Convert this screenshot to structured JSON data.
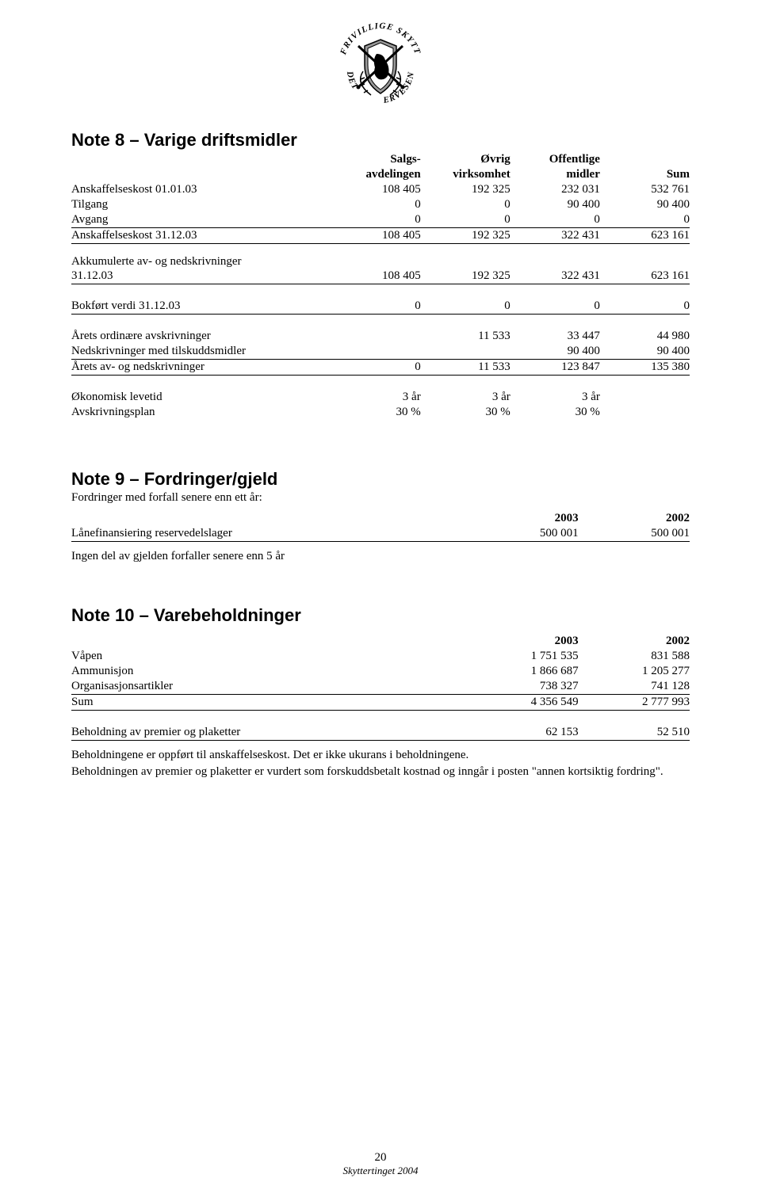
{
  "logo": {
    "arc_text": "DET FRIVILLIGE SKYTTERVESEN"
  },
  "note8": {
    "title": "Note 8 – Varige driftsmidler",
    "headers": {
      "c1": "Salgs-",
      "c1b": "avdelingen",
      "c2": "Øvrig",
      "c2b": "virksomhet",
      "c3": "Offentlige",
      "c3b": "midler",
      "c4": "Sum"
    },
    "rows1": [
      {
        "label": "Anskaffelseskost 01.01.03",
        "v": [
          "108 405",
          "192 325",
          "232 031",
          "532 761"
        ],
        "u": false
      },
      {
        "label": "Tilgang",
        "v": [
          "0",
          "0",
          "90 400",
          "90 400"
        ],
        "u": false
      },
      {
        "label": "Avgang",
        "v": [
          "0",
          "0",
          "0",
          "0"
        ],
        "u": true
      },
      {
        "label": "Anskaffelseskost 31.12.03",
        "v": [
          "108 405",
          "192 325",
          "322 431",
          "623 161"
        ],
        "u": true
      }
    ],
    "akk_label": "Akkumulerte av- og nedskrivninger",
    "rows2": [
      {
        "label": "31.12.03",
        "v": [
          "108 405",
          "192 325",
          "322 431",
          "623 161"
        ],
        "u": true
      }
    ],
    "rows3": [
      {
        "label": "Bokført verdi 31.12.03",
        "v": [
          "0",
          "0",
          "0",
          "0"
        ],
        "u": true
      }
    ],
    "rows4": [
      {
        "label": "Årets ordinære avskrivninger",
        "v": [
          "",
          "11 533",
          "33 447",
          "44 980"
        ],
        "u": false
      },
      {
        "label": "Nedskrivninger med tilskuddsmidler",
        "v": [
          "",
          "",
          "90 400",
          "90 400"
        ],
        "u": true
      },
      {
        "label": "Årets av- og nedskrivninger",
        "v": [
          "0",
          "11 533",
          "123 847",
          "135 380"
        ],
        "u": true
      }
    ],
    "rows5": [
      {
        "label": "Økonomisk levetid",
        "v": [
          "3 år",
          "3 år",
          "3 år",
          ""
        ],
        "u": false
      },
      {
        "label": "Avskrivningsplan",
        "v": [
          "30 %",
          "30 %",
          "30 %",
          ""
        ],
        "u": false
      }
    ]
  },
  "note9": {
    "title": "Note 9 – Fordringer/gjeld",
    "subtitle": "Fordringer med forfall senere enn ett år:",
    "headers": [
      "2003",
      "2002"
    ],
    "rows": [
      {
        "label": "Lånefinansiering reservedelslager",
        "v": [
          "500 001",
          "500 001"
        ],
        "u": true
      }
    ],
    "after": "Ingen del av gjelden forfaller senere enn 5 år"
  },
  "note10": {
    "title": "Note 10 – Varebeholdninger",
    "headers": [
      "2003",
      "2002"
    ],
    "rows": [
      {
        "label": "Våpen",
        "v": [
          "1 751 535",
          "831 588"
        ],
        "u": false
      },
      {
        "label": "Ammunisjon",
        "v": [
          "1 866 687",
          "1 205 277"
        ],
        "u": false
      },
      {
        "label": "Organisasjonsartikler",
        "v": [
          "738 327",
          "741 128"
        ],
        "u": true
      },
      {
        "label": "Sum",
        "v": [
          "4 356 549",
          "2 777 993"
        ],
        "u": true
      }
    ],
    "rows2": [
      {
        "label": "Beholdning av premier og plaketter",
        "v": [
          "62 153",
          "52 510"
        ],
        "u": true
      }
    ],
    "para1": "Beholdningene er oppført til anskaffelseskost.  Det er ikke ukurans i beholdningene.",
    "para2": "Beholdningen av premier og plaketter er vurdert som forskuddsbetalt kostnad og inngår i posten \"annen kortsiktig fordring\"."
  },
  "footer": {
    "page": "20",
    "name": "Skyttertinget 2004"
  }
}
